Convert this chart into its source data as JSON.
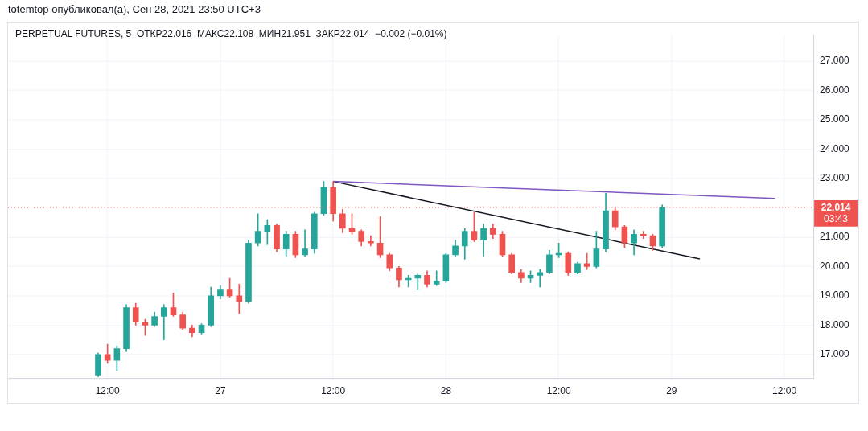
{
  "chart_data": {
    "type": "candlestick",
    "title": "totemtop опубликовал(а), Сен 28, 2021 23:50 UTC+3",
    "subtitle": "PERPETUAL FUTURES, 5  ОТКР22.016  МАКС22.108  МИН21.951  ЗАКР22.014  −0.002 (−0.01%)",
    "x": [
      "2021-09-26T11:00",
      "2021-09-26T12:00",
      "2021-09-26T13:00",
      "2021-09-26T14:00",
      "2021-09-26T15:00",
      "2021-09-26T16:00",
      "2021-09-26T17:00",
      "2021-09-26T18:00",
      "2021-09-26T19:00",
      "2021-09-26T20:00",
      "2021-09-26T21:00",
      "2021-09-26T22:00",
      "2021-09-26T23:00",
      "2021-09-27T00:00",
      "2021-09-27T01:00",
      "2021-09-27T02:00",
      "2021-09-27T03:00",
      "2021-09-27T04:00",
      "2021-09-27T05:00",
      "2021-09-27T06:00",
      "2021-09-27T07:00",
      "2021-09-27T08:00",
      "2021-09-27T09:00",
      "2021-09-27T10:00",
      "2021-09-27T11:00",
      "2021-09-27T12:00",
      "2021-09-27T13:00",
      "2021-09-27T14:00",
      "2021-09-27T15:00",
      "2021-09-27T16:00",
      "2021-09-27T17:00",
      "2021-09-27T18:00",
      "2021-09-27T19:00",
      "2021-09-27T20:00",
      "2021-09-27T21:00",
      "2021-09-27T22:00",
      "2021-09-27T23:00",
      "2021-09-28T00:00",
      "2021-09-28T01:00",
      "2021-09-28T02:00",
      "2021-09-28T03:00",
      "2021-09-28T04:00",
      "2021-09-28T05:00",
      "2021-09-28T06:00",
      "2021-09-28T07:00",
      "2021-09-28T08:00",
      "2021-09-28T09:00",
      "2021-09-28T10:00",
      "2021-09-28T11:00",
      "2021-09-28T12:00",
      "2021-09-28T13:00",
      "2021-09-28T14:00",
      "2021-09-28T15:00",
      "2021-09-28T16:00",
      "2021-09-28T17:00",
      "2021-09-28T18:00",
      "2021-09-28T19:00",
      "2021-09-28T20:00",
      "2021-09-28T21:00",
      "2021-09-28T22:00",
      "2021-09-28T23:00"
    ],
    "ohlc": [
      [
        16.3,
        17.05,
        16.25,
        17.0
      ],
      [
        17.0,
        17.35,
        16.7,
        16.8
      ],
      [
        16.8,
        17.3,
        16.45,
        17.2
      ],
      [
        17.2,
        18.7,
        17.1,
        18.6
      ],
      [
        18.6,
        18.75,
        18.0,
        18.1
      ],
      [
        18.1,
        18.2,
        17.65,
        18.0
      ],
      [
        18.0,
        18.45,
        17.95,
        18.3
      ],
      [
        18.3,
        18.7,
        17.5,
        18.6
      ],
      [
        18.6,
        19.1,
        18.3,
        18.35
      ],
      [
        18.35,
        18.45,
        17.85,
        17.9
      ],
      [
        17.9,
        18.0,
        17.6,
        17.75
      ],
      [
        17.75,
        18.05,
        17.7,
        18.0
      ],
      [
        18.0,
        19.3,
        17.95,
        19.0
      ],
      [
        19.0,
        19.35,
        18.9,
        19.2
      ],
      [
        19.2,
        19.6,
        18.95,
        19.0
      ],
      [
        19.0,
        19.4,
        18.4,
        18.8
      ],
      [
        18.8,
        20.9,
        18.75,
        20.8
      ],
      [
        20.8,
        21.8,
        20.7,
        21.2
      ],
      [
        21.2,
        21.6,
        20.75,
        21.4
      ],
      [
        21.4,
        21.45,
        20.5,
        20.6
      ],
      [
        20.6,
        21.2,
        20.35,
        21.1
      ],
      [
        21.1,
        21.2,
        20.3,
        20.4
      ],
      [
        20.4,
        21.25,
        20.35,
        20.6
      ],
      [
        20.6,
        21.85,
        20.45,
        21.8
      ],
      [
        21.8,
        22.9,
        21.75,
        22.7
      ],
      [
        22.7,
        22.9,
        21.55,
        21.8
      ],
      [
        21.8,
        21.95,
        21.15,
        21.3
      ],
      [
        21.3,
        21.8,
        21.1,
        21.2
      ],
      [
        21.2,
        21.25,
        20.7,
        20.85
      ],
      [
        20.85,
        21.05,
        20.7,
        20.8
      ],
      [
        20.8,
        21.7,
        20.3,
        20.4
      ],
      [
        20.4,
        20.45,
        19.85,
        19.95
      ],
      [
        19.95,
        20.0,
        19.3,
        19.55
      ],
      [
        19.55,
        19.7,
        19.3,
        19.6
      ],
      [
        19.6,
        19.75,
        19.2,
        19.7
      ],
      [
        19.7,
        19.85,
        19.3,
        19.4
      ],
      [
        19.4,
        19.85,
        19.35,
        19.5
      ],
      [
        19.5,
        20.45,
        19.45,
        20.4
      ],
      [
        20.4,
        20.9,
        20.35,
        20.7
      ],
      [
        20.7,
        21.3,
        20.25,
        21.2
      ],
      [
        21.2,
        21.85,
        20.85,
        20.9
      ],
      [
        20.9,
        21.45,
        20.35,
        21.3
      ],
      [
        21.3,
        21.45,
        20.95,
        21.1
      ],
      [
        21.1,
        21.2,
        20.35,
        20.4
      ],
      [
        20.4,
        20.45,
        19.75,
        19.8
      ],
      [
        19.8,
        19.9,
        19.45,
        19.6
      ],
      [
        19.6,
        19.85,
        19.45,
        19.7
      ],
      [
        19.7,
        19.9,
        19.3,
        19.8
      ],
      [
        19.8,
        20.55,
        19.75,
        20.4
      ],
      [
        20.4,
        20.8,
        20.3,
        20.45
      ],
      [
        20.45,
        20.5,
        19.7,
        19.8
      ],
      [
        19.8,
        20.15,
        19.75,
        20.1
      ],
      [
        20.1,
        20.45,
        19.9,
        20.0
      ],
      [
        20.0,
        21.2,
        19.95,
        20.6
      ],
      [
        20.6,
        22.5,
        20.5,
        21.9
      ],
      [
        21.9,
        22.0,
        21.25,
        21.35
      ],
      [
        21.35,
        21.4,
        20.65,
        20.8
      ],
      [
        20.8,
        21.25,
        20.4,
        21.1
      ],
      [
        21.1,
        21.2,
        20.95,
        21.05
      ],
      [
        21.05,
        21.1,
        20.55,
        20.7
      ],
      [
        20.7,
        22.1,
        20.65,
        22.014
      ]
    ],
    "colors": [
      "#26a69a",
      "#ef5350",
      "#26a69a",
      "#26a69a",
      "#ef5350",
      "#ef5350",
      "#26a69a",
      "#26a69a",
      "#ef5350",
      "#ef5350",
      "#ef5350",
      "#26a69a",
      "#26a69a",
      "#26a69a",
      "#ef5350",
      "#ef5350",
      "#26a69a",
      "#26a69a",
      "#26a69a",
      "#ef5350",
      "#26a69a",
      "#ef5350",
      "#26a69a",
      "#26a69a",
      "#26a69a",
      "#ef5350",
      "#ef5350",
      "#ef5350",
      "#ef5350",
      "#ef5350",
      "#ef5350",
      "#ef5350",
      "#ef5350",
      "#26a69a",
      "#26a69a",
      "#ef5350",
      "#26a69a",
      "#26a69a",
      "#26a69a",
      "#26a69a",
      "#ef5350",
      "#26a69a",
      "#ef5350",
      "#ef5350",
      "#ef5350",
      "#ef5350",
      "#26a69a",
      "#26a69a",
      "#26a69a",
      "#26a69a",
      "#ef5350",
      "#26a69a",
      "#ef5350",
      "#26a69a",
      "#26a69a",
      "#ef5350",
      "#ef5350",
      "#26a69a",
      "#ef5350",
      "#ef5350",
      "#26a69a"
    ],
    "series": [
      {
        "type": "line",
        "color": "#7e57c2",
        "x": [
          "2021-09-27T12:00",
          "2021-09-29T11:00"
        ],
        "values": [
          22.9,
          22.32
        ]
      },
      {
        "type": "line",
        "color": "#131722",
        "x": [
          "2021-09-27T12:00",
          "2021-09-29T03:00"
        ],
        "values": [
          22.9,
          20.26
        ]
      }
    ],
    "xlim": [
      "2021-09-26T01:25",
      "2021-09-29T15:05"
    ],
    "xticks": [
      {
        "value": "2021-09-26T12:00",
        "label": "12:00"
      },
      {
        "value": "2021-09-27",
        "label": "27"
      },
      {
        "value": "2021-09-27T12:00",
        "label": "12:00"
      },
      {
        "value": "2021-09-28",
        "label": "28"
      },
      {
        "value": "2021-09-28T12:00",
        "label": "12:00"
      },
      {
        "value": "2021-09-29",
        "label": "29"
      },
      {
        "value": "2021-09-29T12:00",
        "label": "12:00"
      }
    ],
    "ylim": [
      16.2,
      27.9
    ],
    "yticks": [
      {
        "value": 17,
        "label": "17.000"
      },
      {
        "value": 18,
        "label": "18.000"
      },
      {
        "value": 19,
        "label": "19.000"
      },
      {
        "value": 20,
        "label": "20.000"
      },
      {
        "value": 21,
        "label": "21.000"
      },
      {
        "value": 23,
        "label": "23.000"
      },
      {
        "value": 24,
        "label": "24.000"
      },
      {
        "value": 25,
        "label": "25.000"
      },
      {
        "value": 26,
        "label": "26.000"
      },
      {
        "value": 27,
        "label": "27.000"
      }
    ],
    "grid": true,
    "ref_lines": [
      {
        "axis": "y",
        "value": 22.014,
        "label": "22.014",
        "color": "#ef5350",
        "line_style": "dotted"
      }
    ],
    "annotations": [
      "03:43"
    ]
  }
}
